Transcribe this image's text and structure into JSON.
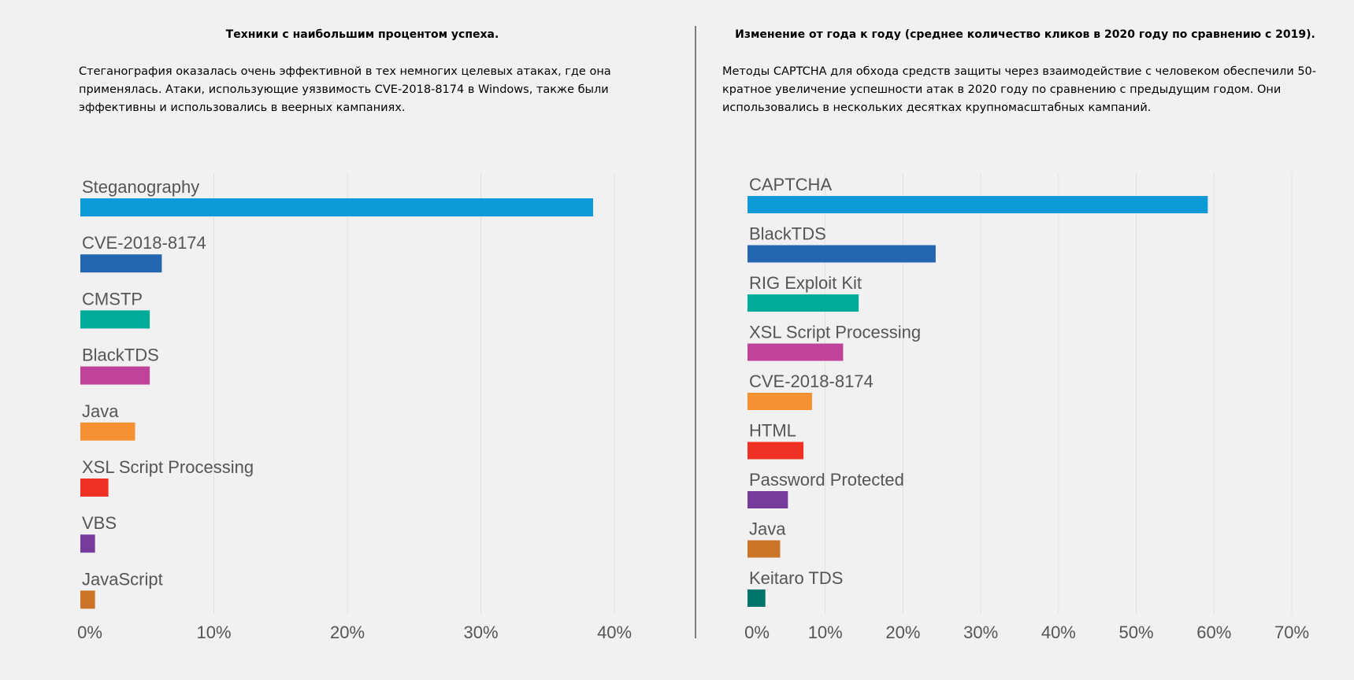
{
  "left": {
    "title": "Техники с наибольшим процентом успеха.",
    "description": "Стеганография оказалась очень эффективной в тех немногих целевых атаках, где она применялась. Атаки, использующие уязвимость CVE-2018-8174 в Windows, также были эффективны и использовались в веерных кампаниях."
  },
  "right": {
    "title": "Изменение от года к году (среднее количество кликов в 2020 году по сравнению с 2019).",
    "description": "Методы CAPTCHA для обхода средств защиты через взаимодействие с человеком обеспечили 50-кратное увеличение успешности атак в 2020 году по сравнению с предыдущим годом. Они использовались в нескольких десятках крупномасштабных кампаний."
  },
  "chart_data": [
    {
      "type": "bar",
      "orientation": "horizontal",
      "title": "",
      "xlabel": "",
      "ylabel": "",
      "categories": [
        "Steganography",
        "CVE-2018-8174",
        "CMSTP",
        "BlackTDS",
        "Java",
        "XSL Script Processing",
        "VBS",
        "JavaScript"
      ],
      "values": [
        38.4,
        6.1,
        5.2,
        5.2,
        4.1,
        2.1,
        1.1,
        1.1
      ],
      "colors": [
        "#0d9bd8",
        "#2566b0",
        "#00ab97",
        "#c0439a",
        "#f59132",
        "#ee3124",
        "#763c9c",
        "#cb7428"
      ],
      "xlim": [
        0,
        42
      ],
      "ticks": [
        0,
        10,
        20,
        30,
        40
      ],
      "tick_labels": [
        "0%",
        "10%",
        "20%",
        "30%",
        "40%"
      ],
      "grid": true,
      "legend": "none"
    },
    {
      "type": "bar",
      "orientation": "horizontal",
      "title": "",
      "xlabel": "",
      "ylabel": "",
      "categories": [
        "CAPTCHA",
        "BlackTDS",
        "RIG Exploit Kit",
        "XSL Script Processing",
        "CVE-2018-8174",
        "HTML",
        "Password Protected",
        "Java",
        "Keitaro TDS"
      ],
      "values": [
        59.2,
        24.2,
        14.3,
        12.3,
        8.3,
        7.2,
        5.2,
        4.2,
        2.3
      ],
      "colors": [
        "#0d9bd8",
        "#2566b0",
        "#00ab97",
        "#c0439a",
        "#f59132",
        "#ee3124",
        "#763c9c",
        "#cb7428",
        "#00766a"
      ],
      "xlim": [
        0,
        70
      ],
      "ticks": [
        0,
        10,
        20,
        30,
        40,
        50,
        60,
        70
      ],
      "tick_labels": [
        "0%",
        "10%",
        "20%",
        "30%",
        "40%",
        "50%",
        "60%",
        "70%"
      ],
      "grid": true,
      "legend": "none"
    }
  ]
}
